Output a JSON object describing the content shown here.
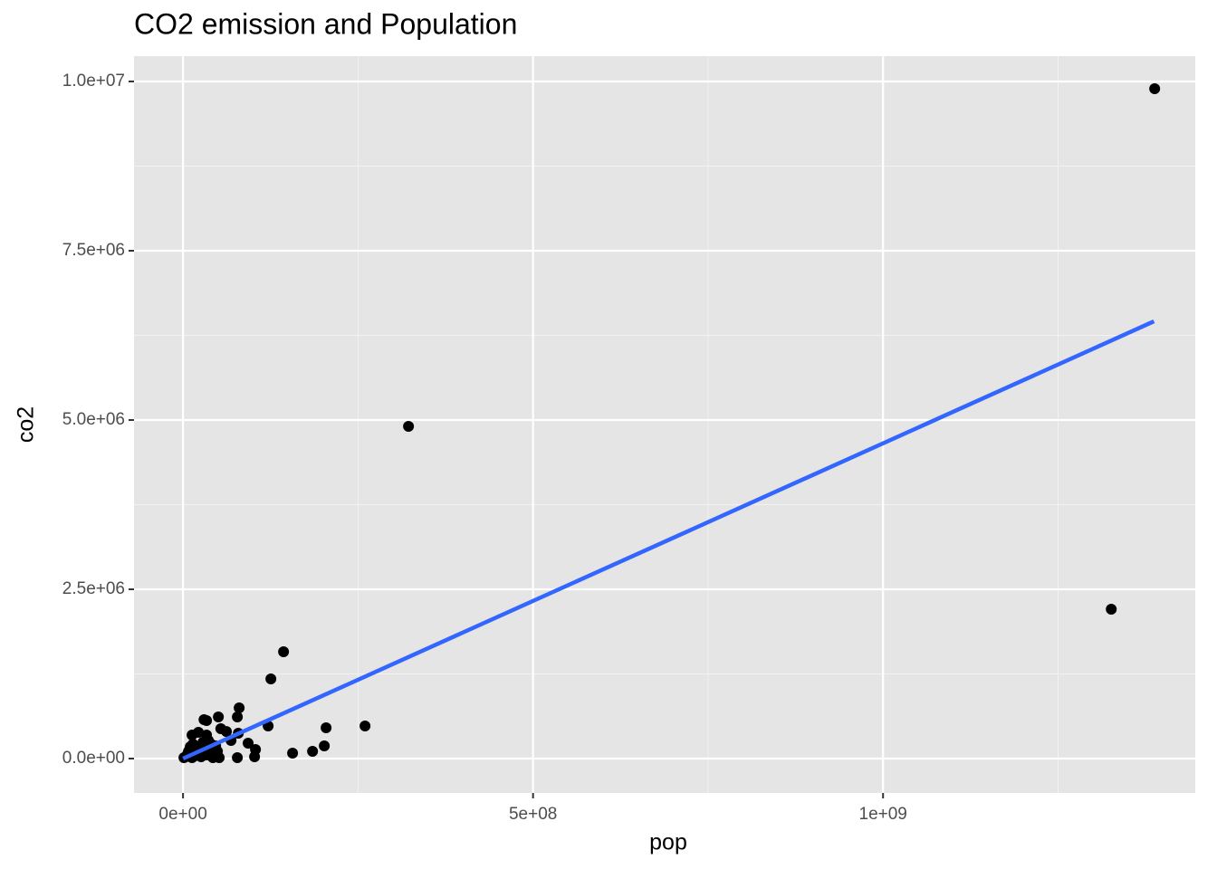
{
  "chart_data": {
    "type": "scatter",
    "title": "CO2 emission and Population",
    "x_label": "pop",
    "y_label": "co2",
    "x": [
      1388000000,
      1326000000,
      322100000,
      143600000,
      125500000,
      80200000,
      77600000,
      50500000,
      33600000,
      30000000,
      260000000,
      121600000,
      204400000,
      54000000,
      22000000,
      62000000,
      79000000,
      93000000,
      68600000,
      201800000,
      185000000,
      156500000,
      103500000,
      102200000,
      77600000,
      51700000,
      3900000,
      7800000,
      10300000,
      14200000,
      18100000,
      23300000,
      28500000,
      33600000,
      38800000,
      44000000,
      46600000,
      36200000,
      16800000,
      6500000,
      1300000,
      12900000,
      25900000,
      42700000,
      49200000,
      33600000,
      12900000,
      40100000
    ],
    "values": [
      9893000,
      2206000,
      4906000,
      1578000,
      1176000,
      749000,
      615000,
      615000,
      561000,
      575000,
      481000,
      481000,
      455000,
      441000,
      388000,
      400000,
      374000,
      227000,
      267000,
      187000,
      107000,
      80000,
      134000,
      27000,
      13000,
      13000,
      27000,
      107000,
      174000,
      214000,
      160000,
      107000,
      241000,
      53000,
      134000,
      80000,
      187000,
      267000,
      40000,
      67000,
      13000,
      13000,
      27000,
      13000,
      107000,
      348000,
      348000,
      214000
    ],
    "color": "#000000",
    "fit": {
      "x": [
        0,
        1387000000
      ],
      "values": [
        0,
        6457000
      ],
      "color": "#3366ff"
    },
    "xlim": [
      -70000000,
      1446000000
    ],
    "ylim": [
      -508000,
      10374000
    ],
    "xticks": [
      {
        "value": 0,
        "label": "0e+00"
      },
      {
        "value": 500000000,
        "label": "5e+08"
      },
      {
        "value": 1000000000,
        "label": "1e+09"
      }
    ],
    "yticks": [
      {
        "value": 0,
        "label": "0.0e+00"
      },
      {
        "value": 2500000,
        "label": "2.5e+06"
      },
      {
        "value": 5000000,
        "label": "5.0e+06"
      },
      {
        "value": 7500000,
        "label": "7.5e+06"
      },
      {
        "value": 10000000,
        "label": "1.0e+07"
      }
    ],
    "grid": true
  }
}
